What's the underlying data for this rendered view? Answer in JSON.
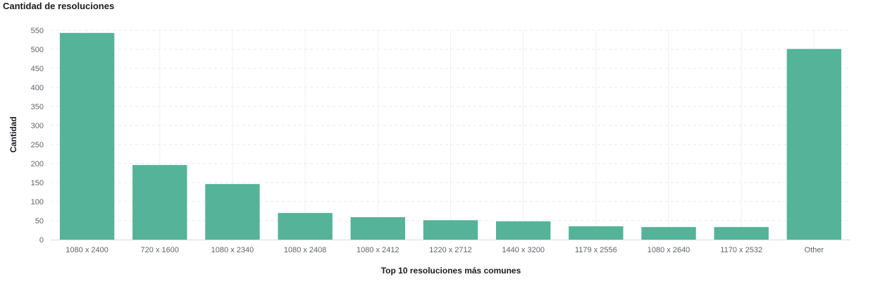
{
  "panel": {
    "title": "Cantidad de resoluciones"
  },
  "chart_data": {
    "type": "bar",
    "title": "Cantidad de resoluciones",
    "xlabel": "Top 10 resoluciones más comunes",
    "ylabel": "Cantidad",
    "categories": [
      "1080 x 2400",
      "720 x 1600",
      "1080 x 2340",
      "1080 x 2408",
      "1080 x 2412",
      "1220 x 2712",
      "1440 x 3200",
      "1179 x 2556",
      "1080 x 2640",
      "1170 x 2532",
      "Other"
    ],
    "values": [
      543,
      196,
      146,
      70,
      59,
      51,
      48,
      35,
      33,
      33,
      501
    ],
    "ylim": [
      0,
      550
    ],
    "yticks": [
      0,
      50,
      100,
      150,
      200,
      250,
      300,
      350,
      400,
      450,
      500,
      550
    ],
    "grid": true,
    "bar_color": "#54b399"
  }
}
